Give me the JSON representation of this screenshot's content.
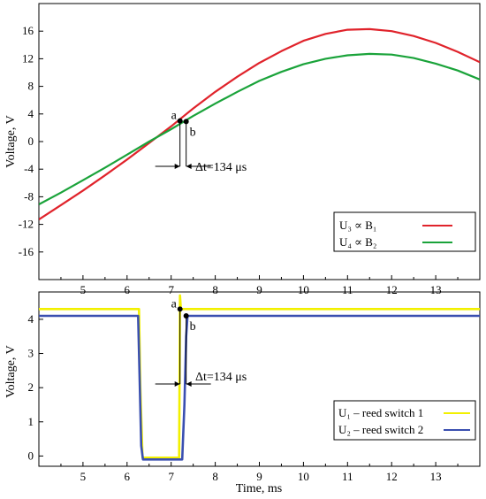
{
  "chart_data": [
    {
      "type": "line",
      "panel": "top",
      "xlabel": "",
      "ylabel": "Voltage, V",
      "xlim": [
        4.0,
        14.0
      ],
      "ylim": [
        -20,
        20
      ],
      "xticks": [
        5,
        6,
        7,
        8,
        9,
        10,
        11,
        12,
        13
      ],
      "yticks": [
        16,
        12,
        8,
        4,
        0,
        -4,
        -8,
        -12,
        -16
      ],
      "grid": false,
      "legend_position": "bottom-right",
      "series": [
        {
          "name": "U₃ ∝ B₁",
          "color": "#e0232b",
          "x": [
            4.0,
            4.5,
            5.0,
            5.5,
            6.0,
            6.5,
            7.0,
            7.5,
            8.0,
            8.5,
            9.0,
            9.5,
            10.0,
            10.5,
            11.0,
            11.5,
            12.0,
            12.5,
            13.0,
            13.5,
            14.0
          ],
          "values": [
            -11.3,
            -9.2,
            -7.1,
            -4.9,
            -2.6,
            -0.2,
            2.2,
            4.8,
            7.2,
            9.4,
            11.4,
            13.1,
            14.6,
            15.6,
            16.2,
            16.3,
            16.0,
            15.3,
            14.3,
            13.0,
            11.5
          ]
        },
        {
          "name": "U₄ ∝ B₂",
          "color": "#1aa33a",
          "x": [
            4.0,
            4.5,
            5.0,
            5.5,
            6.0,
            6.5,
            7.0,
            7.5,
            8.0,
            8.5,
            9.0,
            9.5,
            10.0,
            10.5,
            11.0,
            11.5,
            12.0,
            12.5,
            13.0,
            13.5,
            14.0
          ],
          "values": [
            -9.1,
            -7.4,
            -5.6,
            -3.8,
            -1.9,
            0.0,
            1.8,
            3.7,
            5.5,
            7.2,
            8.8,
            10.1,
            11.2,
            12.0,
            12.5,
            12.7,
            12.6,
            12.1,
            11.3,
            10.3,
            9.0
          ]
        }
      ],
      "markers": [
        {
          "label": "a",
          "x": 7.2,
          "y": 3.0
        },
        {
          "label": "b",
          "x": 7.34,
          "y": 2.9
        }
      ],
      "annotation": "Δt=134 μs"
    },
    {
      "type": "line",
      "panel": "bottom",
      "xlabel": "Time, ms",
      "ylabel": "Voltage, V",
      "xlim": [
        4.0,
        14.0
      ],
      "ylim": [
        -0.3,
        4.8
      ],
      "xticks": [
        5,
        6,
        7,
        8,
        9,
        10,
        11,
        12,
        13
      ],
      "yticks": [
        4,
        3,
        2,
        1,
        0
      ],
      "grid": false,
      "legend_position": "bottom-right",
      "series": [
        {
          "name": "U₁ – reed switch 1",
          "color": "#f2f000",
          "x": [
            4.0,
            6.27,
            6.3,
            6.35,
            7.18,
            7.2,
            7.22,
            14.0
          ],
          "values": [
            4.3,
            4.3,
            2.0,
            -0.05,
            -0.05,
            4.7,
            4.3,
            4.3
          ]
        },
        {
          "name": "U₂ – reed switch 2",
          "color": "#3a4fb0",
          "x": [
            4.0,
            6.25,
            6.28,
            6.32,
            6.36,
            7.25,
            7.3,
            7.34,
            7.37,
            14.0
          ],
          "values": [
            4.1,
            4.1,
            2.5,
            0.3,
            -0.1,
            -0.1,
            1.5,
            3.5,
            4.1,
            4.1
          ]
        }
      ],
      "markers": [
        {
          "label": "a",
          "x": 7.2,
          "y": 4.3
        },
        {
          "label": "b",
          "x": 7.34,
          "y": 4.1
        }
      ],
      "annotation": "Δt=134 μs"
    }
  ]
}
